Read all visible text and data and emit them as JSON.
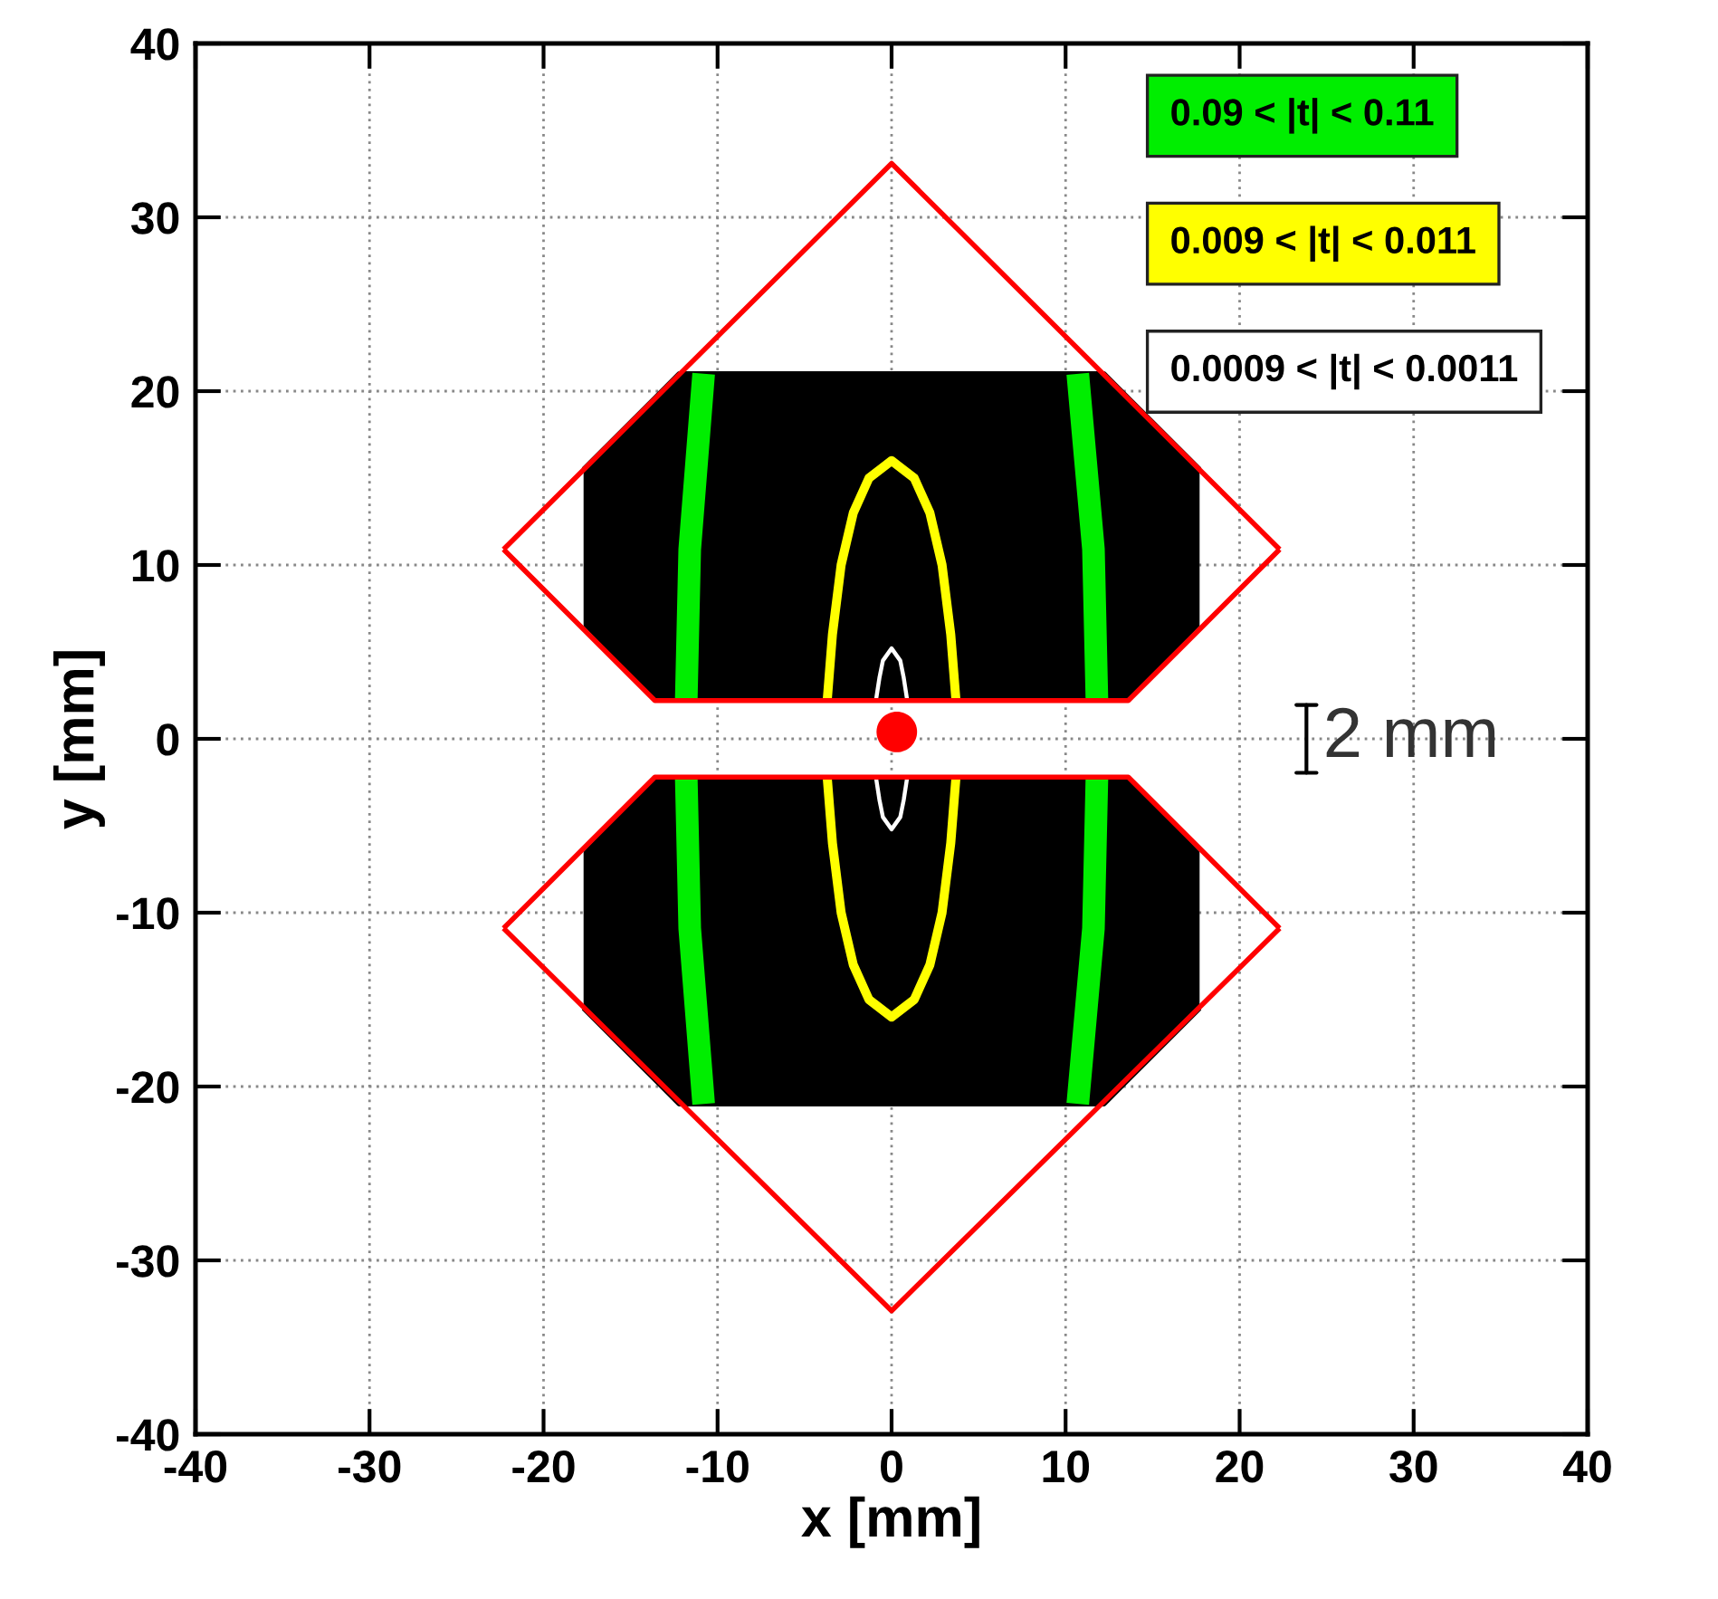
{
  "chart_data": {
    "type": "line",
    "xlabel": "x [mm]",
    "ylabel": "y [mm]",
    "xlim": [
      -40,
      40
    ],
    "ylim": [
      -40,
      40
    ],
    "xticks": [
      -40,
      -30,
      -20,
      -10,
      0,
      10,
      20,
      30,
      40
    ],
    "yticks": [
      -40,
      -30,
      -20,
      -10,
      0,
      10,
      20,
      30,
      40
    ],
    "grid": true,
    "legend": "top right",
    "annotations": [
      "2 mm"
    ],
    "series": [
      {
        "color": "#000000",
        "x": [
          -17.7,
          -13.6,
          -12.2,
          12.2,
          13.6,
          17.7
        ],
        "values": [
          15.5,
          19.6,
          21,
          21,
          19.6,
          15.5
        ],
        "lower": [
          6.5,
          2.2,
          2.2,
          2.2,
          2.2,
          6.5
        ],
        "upper": [
          15.5,
          19.6,
          21,
          21,
          19.6,
          15.5
        ]
      },
      {
        "color": "#000000",
        "x": [
          -17.7,
          -13.6,
          -12.2,
          12.2,
          13.6,
          17.7
        ],
        "values": [
          -15.5,
          -19.6,
          -21,
          -21,
          -19.6,
          -15.5
        ],
        "lower": [
          -15.5,
          -19.6,
          -21,
          -21,
          -19.6,
          -15.5
        ],
        "upper": [
          -6.5,
          -2.2,
          -2.2,
          -2.2,
          -2.2,
          -6.5
        ]
      },
      {
        "name": "0.09 < |t| < 0.11",
        "color": "#00ee00",
        "x": [
          -10.8,
          -11.6,
          -11.8
        ],
        "values": [
          21,
          10.9,
          2.2
        ]
      },
      {
        "color": "#00ee00",
        "x": [
          -11.8,
          -11.6,
          -10.8
        ],
        "values": [
          -2.2,
          -10.9,
          -21
        ]
      },
      {
        "color": "#00ee00",
        "x": [
          10.7,
          11.6,
          11.8
        ],
        "values": [
          21,
          10.9,
          2.2
        ]
      },
      {
        "color": "#00ee00",
        "x": [
          11.8,
          11.6,
          10.7
        ],
        "values": [
          -2.2,
          -10.9,
          -21
        ]
      },
      {
        "name": "0.009 < |t| < 0.011",
        "color": "#ffff00",
        "x": [
          -3.7,
          -3.4,
          -2.9,
          -2.2,
          -1.3,
          0,
          1.3,
          2.2,
          2.9,
          3.4,
          3.7
        ],
        "values": [
          2.2,
          6,
          10,
          13,
          15,
          16,
          15,
          13,
          10,
          6,
          2.2
        ]
      },
      {
        "color": "#ffff00",
        "x": [
          -3.7,
          -3.4,
          -2.9,
          -2.2,
          -1.3,
          0,
          1.3,
          2.2,
          2.9,
          3.4,
          3.7
        ],
        "values": [
          -2.2,
          -6,
          -10,
          -13,
          -15,
          -16,
          -15,
          -13,
          -10,
          -6,
          -2.2
        ]
      },
      {
        "name": "0.0009 < |t| < 0.0011",
        "color": "#ffffff",
        "x": [
          -0.9,
          -0.7,
          -0.5,
          0,
          0.5,
          0.7,
          0.9
        ],
        "values": [
          2.2,
          3.5,
          4.5,
          5.2,
          4.5,
          3.5,
          2.2
        ]
      },
      {
        "color": "#ffffff",
        "x": [
          -0.9,
          -0.7,
          -0.5,
          0,
          0.5,
          0.7,
          0.9
        ],
        "values": [
          -2.2,
          -3.5,
          -4.5,
          -5.2,
          -4.5,
          -3.5,
          -2.2
        ]
      },
      {
        "color": "#ff0000",
        "x": [
          -22.3,
          0,
          22.3
        ],
        "values": [
          10.9,
          33.1,
          10.9
        ]
      },
      {
        "color": "#ff0000",
        "x": [
          -22.3,
          -13.6,
          13.6,
          22.3
        ],
        "values": [
          10.9,
          2.2,
          2.2,
          10.9
        ]
      },
      {
        "color": "#ff0000",
        "x": [
          -22.3,
          -13.6,
          13.6,
          22.3
        ],
        "values": [
          -10.9,
          -2.2,
          -2.2,
          -10.9
        ]
      },
      {
        "color": "#ff0000",
        "x": [
          -22.3,
          0,
          22.3
        ],
        "values": [
          -10.9,
          -32.9,
          -10.9
        ]
      },
      {
        "type": "scatter",
        "color": "#ff0000",
        "marker": "circle",
        "x": [
          0.3
        ],
        "values": [
          0.4
        ]
      }
    ]
  }
}
